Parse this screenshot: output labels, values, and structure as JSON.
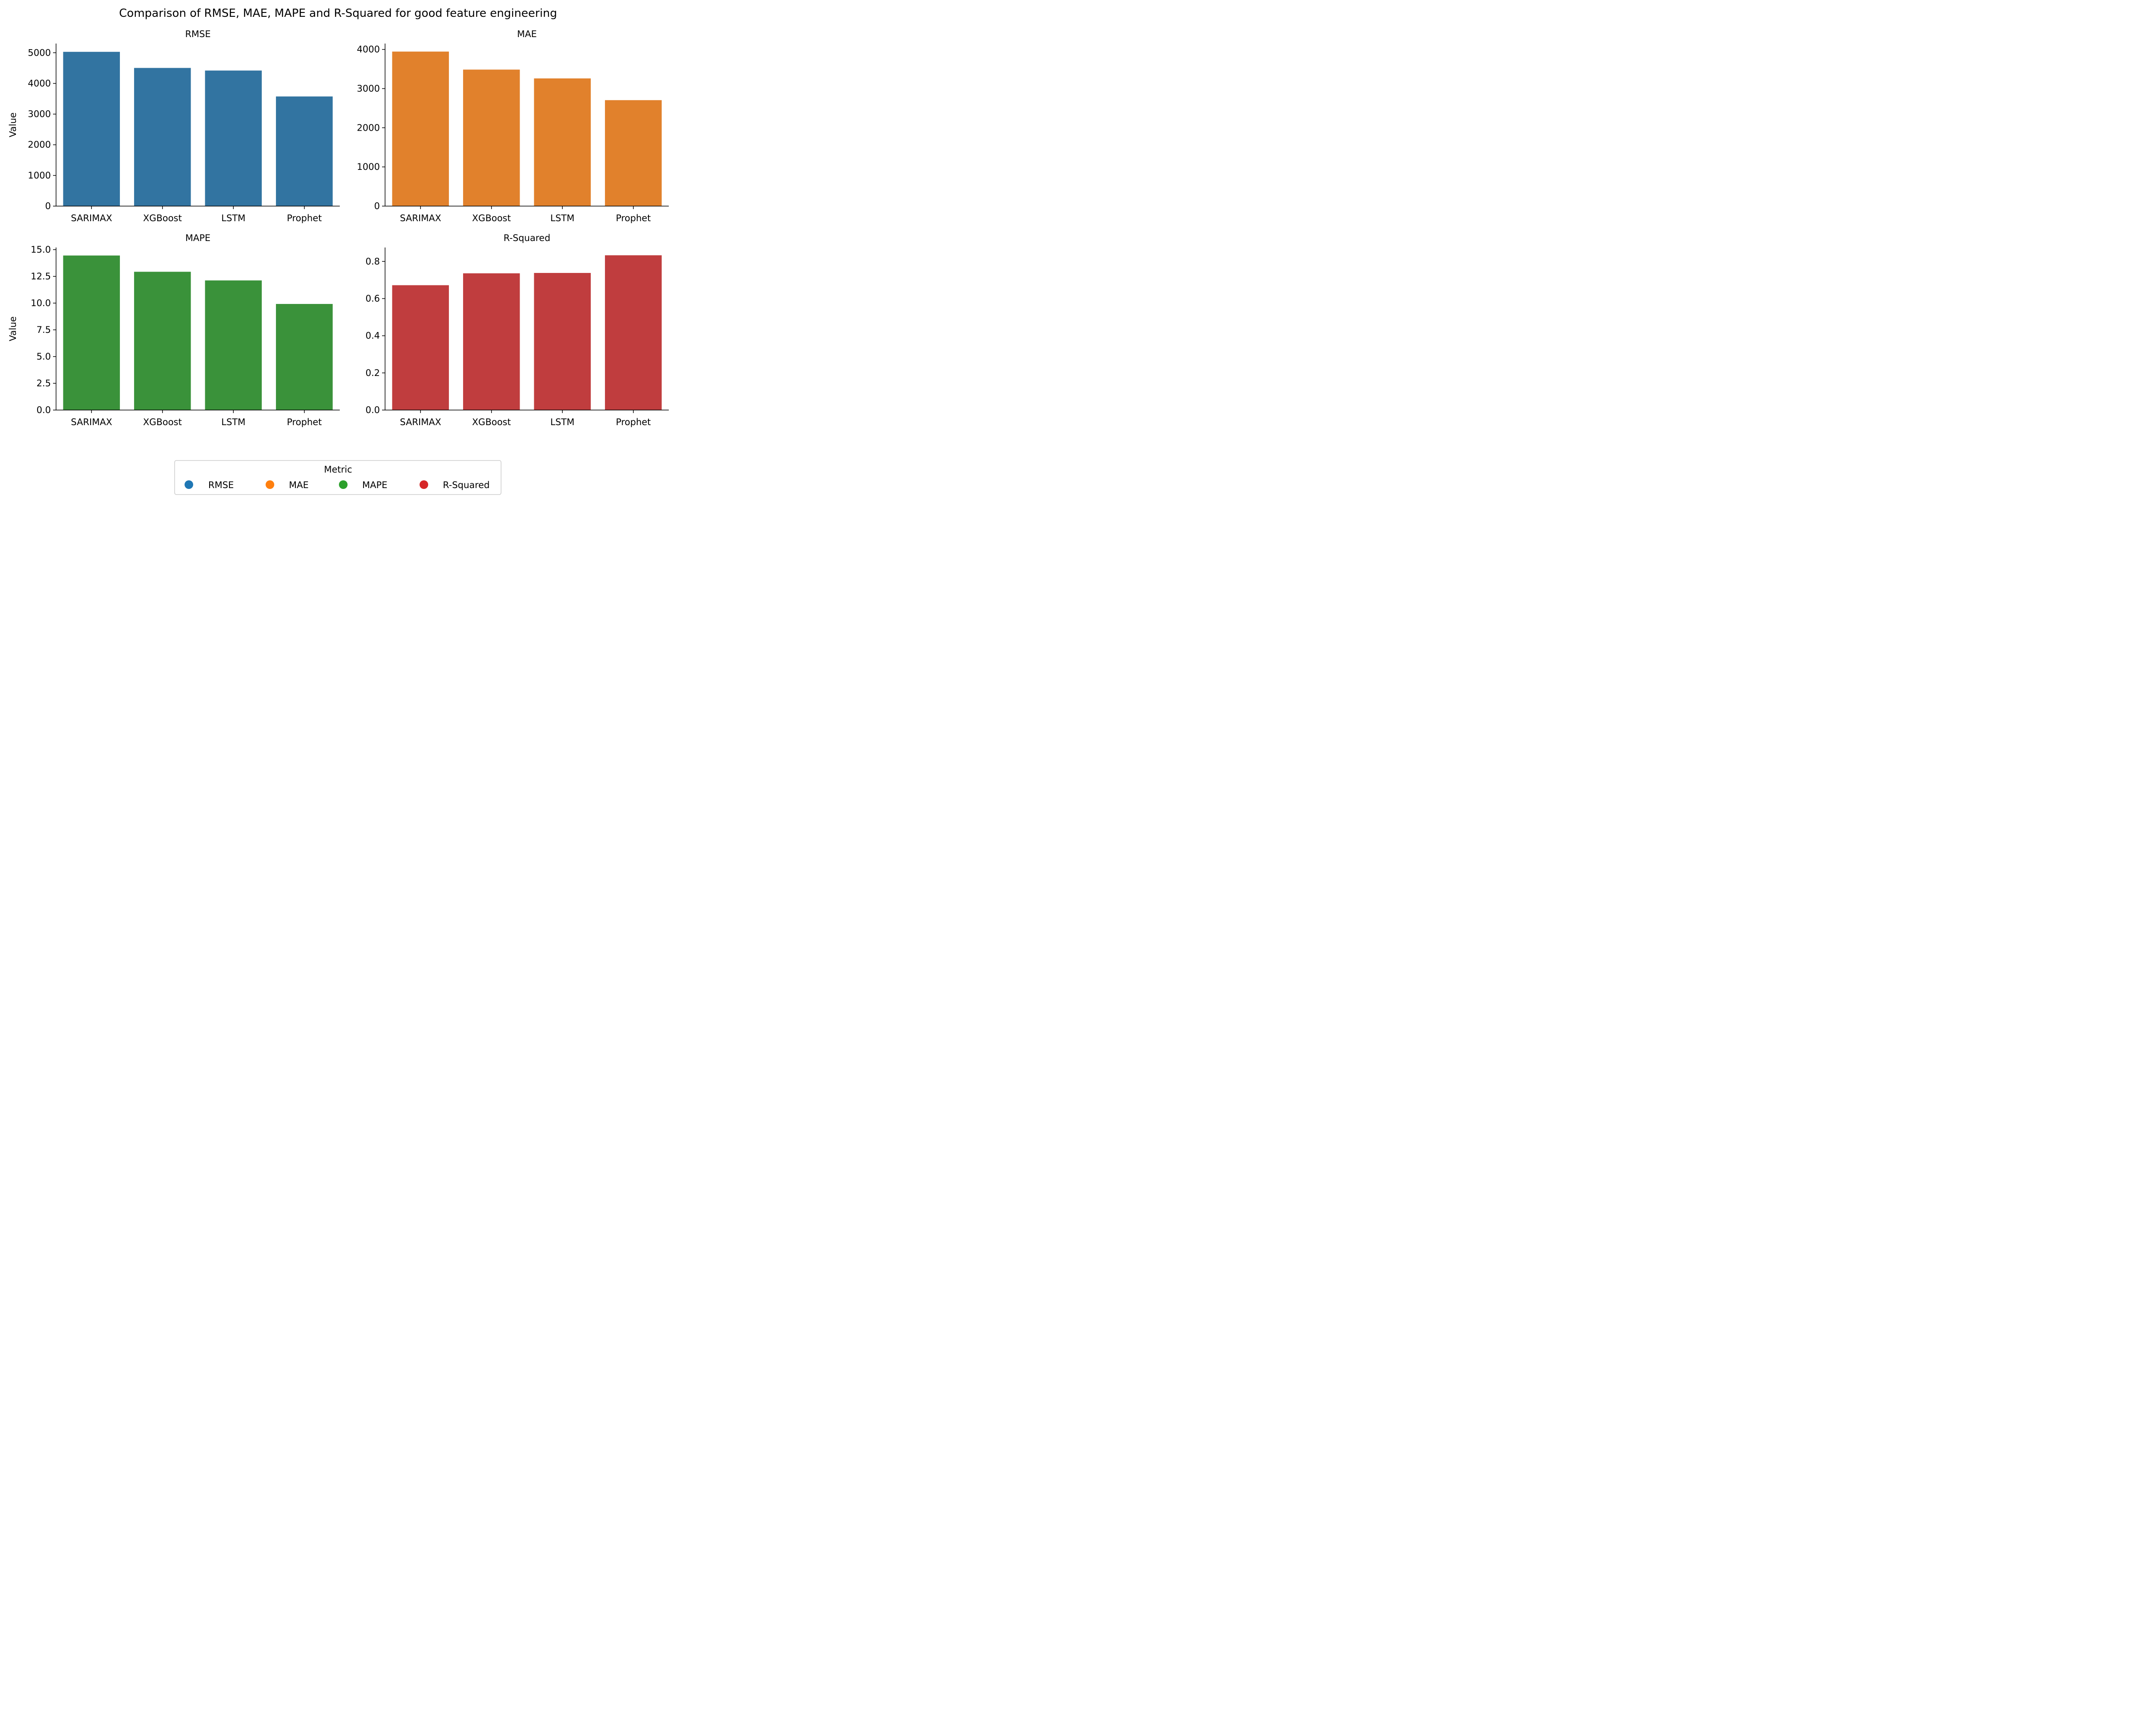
{
  "figure_title": "Comparison of RMSE, MAE, MAPE and R-Squared for good feature engineering",
  "chart_data": [
    {
      "type": "bar",
      "title": "RMSE",
      "categories": [
        "SARIMAX",
        "XGBoost",
        "LSTM",
        "Prophet"
      ],
      "values": [
        5030,
        4505,
        4420,
        3575
      ],
      "ylabel": "Value",
      "xlabel": "",
      "ylim": [
        0,
        5300
      ],
      "yticks": [
        0,
        1000,
        2000,
        3000,
        4000,
        5000
      ],
      "ytick_labels": [
        "0",
        "1000",
        "2000",
        "3000",
        "4000",
        "5000"
      ],
      "color": "#3274a1"
    },
    {
      "type": "bar",
      "title": "MAE",
      "categories": [
        "SARIMAX",
        "XGBoost",
        "LSTM",
        "Prophet"
      ],
      "values": [
        3945,
        3485,
        3260,
        2705
      ],
      "ylabel": "",
      "xlabel": "",
      "ylim": [
        0,
        4150
      ],
      "yticks": [
        0,
        1000,
        2000,
        3000,
        4000
      ],
      "ytick_labels": [
        "0",
        "1000",
        "2000",
        "3000",
        "4000"
      ],
      "color": "#e1812c"
    },
    {
      "type": "bar",
      "title": "MAPE",
      "categories": [
        "SARIMAX",
        "XGBoost",
        "LSTM",
        "Prophet"
      ],
      "values": [
        14.45,
        12.93,
        12.12,
        9.92
      ],
      "ylabel": "Value",
      "xlabel": "",
      "ylim": [
        0,
        15.2
      ],
      "yticks": [
        0,
        2.5,
        5,
        7.5,
        10,
        12.5,
        15
      ],
      "ytick_labels": [
        "0.0",
        "2.5",
        "5.0",
        "7.5",
        "10.0",
        "12.5",
        "15.0"
      ],
      "color": "#3a923a"
    },
    {
      "type": "bar",
      "title": "R-Squared",
      "categories": [
        "SARIMAX",
        "XGBoost",
        "LSTM",
        "Prophet"
      ],
      "values": [
        0.672,
        0.736,
        0.738,
        0.833
      ],
      "ylabel": "",
      "xlabel": "",
      "ylim": [
        0,
        0.875
      ],
      "yticks": [
        0,
        0.2,
        0.4,
        0.6,
        0.8
      ],
      "ytick_labels": [
        "0.0",
        "0.2",
        "0.4",
        "0.6",
        "0.8"
      ],
      "color": "#c03d3e"
    }
  ],
  "legend": {
    "title": "Metric",
    "placement": "bottom-center",
    "items": [
      {
        "label": "RMSE",
        "color": "#1f77b4"
      },
      {
        "label": "MAE",
        "color": "#ff7f0e"
      },
      {
        "label": "MAPE",
        "color": "#2ca02c"
      },
      {
        "label": "R-Squared",
        "color": "#d62728"
      }
    ]
  }
}
